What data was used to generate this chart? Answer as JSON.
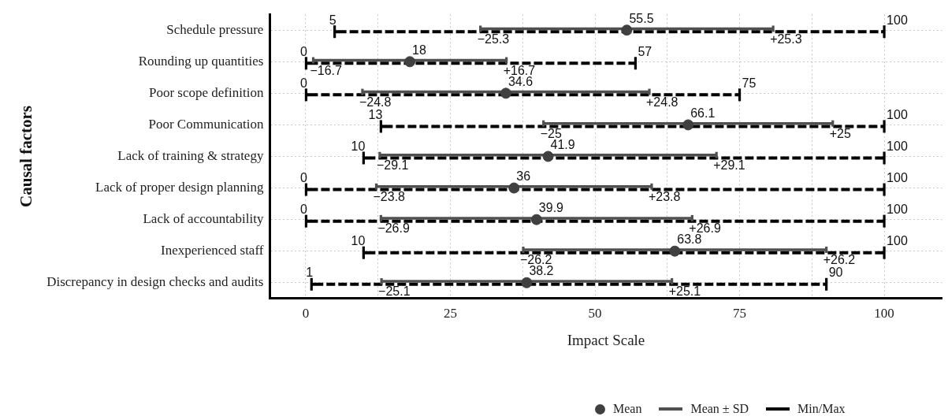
{
  "chart_data": {
    "type": "scatter",
    "orientation": "horizontal",
    "ylabel": "Causal factors",
    "xlabel": "Impact Scale",
    "categories": [
      "Schedule pressure",
      "Rounding up quantities",
      "Poor scope definition",
      "Poor Communication",
      "Lack of training & strategy",
      "Lack of proper design planning",
      "Lack of accountability",
      "Inexperienced staff",
      "Discrepancy in design checks and audits"
    ],
    "series": [
      {
        "name": "Mean",
        "marker": "circle",
        "color": "#404040",
        "values": [
          55.5,
          18,
          34.6,
          66.1,
          41.9,
          36,
          39.9,
          63.8,
          38.2
        ],
        "value_labels": [
          "55.5",
          "18",
          "34.6",
          "66.1",
          "41.9",
          "36",
          "39.9",
          "63.8",
          "38.2"
        ]
      },
      {
        "name": "Mean ± SD",
        "type": "bar",
        "color": "#505050",
        "base": [
          30.2,
          1.3,
          9.8,
          41.1,
          12.8,
          12.2,
          13,
          37.6,
          13.1
        ],
        "values": [
          50.6,
          33.4,
          49.6,
          50,
          58.2,
          47.6,
          53.8,
          52.4,
          50.2
        ]
      },
      {
        "name": "Min/Max",
        "type": "bar",
        "line_style": "dashed",
        "color": "#000000",
        "base": [
          5,
          0,
          0,
          13,
          10,
          0,
          0,
          10,
          1
        ],
        "values": [
          95,
          57,
          75,
          87,
          90,
          100,
          100,
          90,
          89
        ]
      }
    ],
    "xlim": [
      -6.2,
      110
    ],
    "xticks": [
      0,
      {
        "value": 12.5,
        "label": null
      },
      25,
      {
        "value": 37.5,
        "label": null
      },
      50,
      {
        "value": 62.5,
        "label": null
      },
      75,
      {
        "value": 87.5,
        "label": null
      },
      100
    ],
    "grid": true,
    "legend": "bottom",
    "annotations": [
      {
        "text": "5",
        "x": 5,
        "y": "Schedule pressure"
      },
      {
        "text": "100",
        "x": 100,
        "y": "Schedule pressure"
      },
      {
        "text": "−25.3",
        "x": 30.2,
        "y": "Schedule pressure"
      },
      {
        "text": "+25.3",
        "x": 80.8,
        "y": "Schedule pressure"
      },
      {
        "text": "0",
        "x": 0,
        "y": "Rounding up quantities"
      },
      {
        "text": "57",
        "x": 57,
        "y": "Rounding up quantities"
      },
      {
        "text": "−16.7",
        "x": 1.3,
        "y": "Rounding up quantities"
      },
      {
        "text": "+16.7",
        "x": 34.7,
        "y": "Rounding up quantities"
      },
      {
        "text": "0",
        "x": 0,
        "y": "Poor scope definition"
      },
      {
        "text": "75",
        "x": 75,
        "y": "Poor scope definition"
      },
      {
        "text": "−24.8",
        "x": 9.8,
        "y": "Poor scope definition"
      },
      {
        "text": "+24.8",
        "x": 59.4,
        "y": "Poor scope definition"
      },
      {
        "text": "13",
        "x": 13,
        "y": "Poor Communication"
      },
      {
        "text": "100",
        "x": 100,
        "y": "Poor Communication"
      },
      {
        "text": "−25",
        "x": 41.1,
        "y": "Poor Communication"
      },
      {
        "text": "+25",
        "x": 91.1,
        "y": "Poor Communication"
      },
      {
        "text": "10",
        "x": 10,
        "y": "Lack of training & strategy"
      },
      {
        "text": "100",
        "x": 100,
        "y": "Lack of training & strategy"
      },
      {
        "text": "−29.1",
        "x": 12.8,
        "y": "Lack of training & strategy"
      },
      {
        "text": "+29.1",
        "x": 71,
        "y": "Lack of training & strategy"
      },
      {
        "text": "0",
        "x": 0,
        "y": "Lack of proper design planning"
      },
      {
        "text": "100",
        "x": 100,
        "y": "Lack of proper design planning"
      },
      {
        "text": "−23.8",
        "x": 12.2,
        "y": "Lack of proper design planning"
      },
      {
        "text": "+23.8",
        "x": 59.8,
        "y": "Lack of proper design planning"
      },
      {
        "text": "0",
        "x": 0,
        "y": "Lack of accountability"
      },
      {
        "text": "100",
        "x": 100,
        "y": "Lack of accountability"
      },
      {
        "text": "−26.9",
        "x": 13,
        "y": "Lack of accountability"
      },
      {
        "text": "+26.9",
        "x": 66.8,
        "y": "Lack of accountability"
      },
      {
        "text": "10",
        "x": 10,
        "y": "Inexperienced staff"
      },
      {
        "text": "100",
        "x": 100,
        "y": "Inexperienced staff"
      },
      {
        "text": "−26.2",
        "x": 37.6,
        "y": "Inexperienced staff"
      },
      {
        "text": "+26.2",
        "x": 90,
        "y": "Inexperienced staff"
      },
      {
        "text": "1",
        "x": 1,
        "y": "Discrepancy in design checks and audits"
      },
      {
        "text": "90",
        "x": 90,
        "y": "Discrepancy in design checks and audits"
      },
      {
        "text": "−25.1",
        "x": 13.1,
        "y": "Discrepancy in design checks and audits"
      },
      {
        "text": "+25.1",
        "x": 63.3,
        "y": "Discrepancy in design checks and audits"
      }
    ]
  }
}
